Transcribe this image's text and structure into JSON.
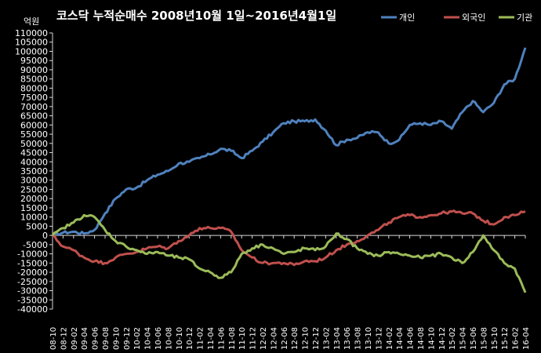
{
  "chart_data": {
    "type": "line",
    "title": "코스닥  누적순매수 2008년10월 1일~2016년4월1일",
    "ylabel": "억원",
    "ylim": [
      -40000,
      110000
    ],
    "y_ticks": [
      110000,
      105000,
      100000,
      95000,
      90000,
      85000,
      80000,
      75000,
      70000,
      65000,
      60000,
      55000,
      50000,
      45000,
      40000,
      35000,
      30000,
      25000,
      20000,
      15000,
      10000,
      5000,
      0,
      -5000,
      -10000,
      -15000,
      -20000,
      -25000,
      -30000,
      -35000,
      -40000
    ],
    "y_tick_labels": [
      "110000",
      "105000",
      "100000",
      "95000",
      "90000",
      "85000",
      "80000",
      "75000",
      "70000",
      "65000",
      "60000",
      "55000",
      "50000",
      "45000",
      "40000",
      "35000",
      "30000",
      "25000",
      "20000",
      "15000",
      "10000",
      "5000",
      "0",
      "-5000",
      "-10000",
      "-15000",
      "-20000",
      "-25000",
      "-30000",
      "-35000",
      "-40000"
    ],
    "categories": [
      "08-10",
      "08-12",
      "09-02",
      "09-04",
      "09-06",
      "09-08",
      "09-10",
      "09-12",
      "10-02",
      "10-04",
      "10-06",
      "10-08",
      "10-10",
      "10-12",
      "11-02",
      "11-04",
      "11-06",
      "11-08",
      "11-10",
      "11-12",
      "12-02",
      "12-04",
      "12-06",
      "12-08",
      "12-10",
      "12-12",
      "13-02",
      "13-04",
      "13-06",
      "13-08",
      "13-10",
      "13-12",
      "14-02",
      "14-04",
      "14-06",
      "14-08",
      "14-10",
      "14-12",
      "15-02",
      "15-04",
      "15-06",
      "15-08",
      "15-10",
      "15-12",
      "16-02",
      "16-04"
    ],
    "grid": false,
    "legend_position": "top-right",
    "series": [
      {
        "name": "개인",
        "color": "#4f81bd",
        "values": [
          0,
          1500,
          2000,
          1000,
          3000,
          12000,
          20000,
          25000,
          26000,
          30000,
          33000,
          35000,
          39000,
          40000,
          42000,
          44000,
          47000,
          46000,
          42000,
          46000,
          51000,
          56000,
          61000,
          62000,
          62000,
          63000,
          57000,
          49000,
          52000,
          53000,
          56000,
          56000,
          50000,
          52000,
          60000,
          61000,
          60000,
          62000,
          58000,
          67000,
          73000,
          67000,
          72000,
          82000,
          85000,
          102000
        ]
      },
      {
        "name": "외국인",
        "color": "#c0504d",
        "values": [
          0,
          -6000,
          -8000,
          -12000,
          -14000,
          -15000,
          -12000,
          -10000,
          -9000,
          -7000,
          -6000,
          -7000,
          -3000,
          0,
          4000,
          4000,
          4000,
          2000,
          -8000,
          -12000,
          -15000,
          -15000,
          -15000,
          -16000,
          -14000,
          -14000,
          -12000,
          -8000,
          -5000,
          -3000,
          0,
          3000,
          7000,
          10000,
          11000,
          10000,
          11000,
          12000,
          13000,
          12000,
          12000,
          8000,
          6000,
          10000,
          11000,
          13000
        ]
      },
      {
        "name": "기관",
        "color": "#9bbb59",
        "values": [
          0,
          4000,
          7000,
          11000,
          10000,
          3000,
          -3000,
          -6000,
          -8000,
          -10000,
          -9000,
          -11000,
          -12000,
          -13000,
          -18000,
          -20000,
          -23000,
          -20000,
          -10000,
          -7000,
          -5000,
          -7000,
          -10000,
          -9000,
          -7000,
          -8000,
          -6000,
          1000,
          -2000,
          -7000,
          -10000,
          -11000,
          -9000,
          -10000,
          -11000,
          -12000,
          -11000,
          -10000,
          -12000,
          -15000,
          -9000,
          0,
          -8000,
          -15000,
          -18000,
          -31000
        ]
      }
    ]
  }
}
